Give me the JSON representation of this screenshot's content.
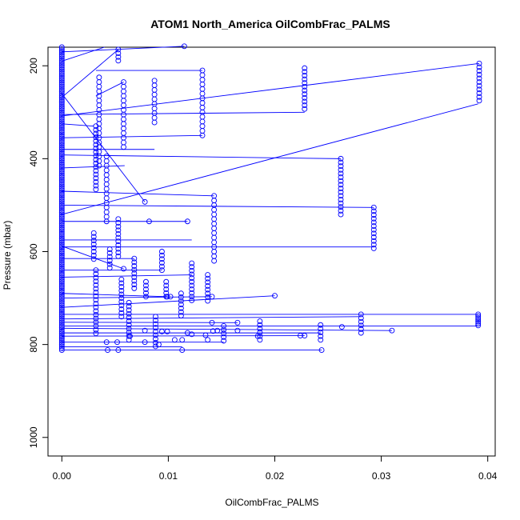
{
  "chart_data": {
    "type": "scatter",
    "title": "ATOM1 North_America OilCombFrac_PALMS",
    "xlabel": "OilCombFrac_PALMS",
    "ylabel": "Pressure (mbar)",
    "xlim": [
      -0.0013,
      0.0407
    ],
    "ylim": [
      1040,
      160
    ],
    "y_reversed": true,
    "grid": false,
    "legend": "none",
    "marker": "open-circle",
    "color": "#0000ff",
    "x_ticks": [
      {
        "value": 0,
        "label": "0.00"
      },
      {
        "value": 0.01,
        "label": "0.01"
      },
      {
        "value": 0.02,
        "label": "0.02"
      },
      {
        "value": 0.03,
        "label": "0.03"
      },
      {
        "value": 0.04,
        "label": "0.04"
      }
    ],
    "y_ticks": [
      {
        "value": 200,
        "label": "200"
      },
      {
        "value": 400,
        "label": "400"
      },
      {
        "value": 600,
        "label": "600"
      },
      {
        "value": 800,
        "label": "800"
      },
      {
        "value": 1000,
        "label": "1000"
      }
    ],
    "column_points": [
      {
        "x": 0.0,
        "p_min": 160,
        "p_max": 812,
        "step": 4
      },
      {
        "x": 0.0032,
        "p_min": 330,
        "p_max": 470,
        "step": 8
      },
      {
        "x": 0.0035,
        "p_min": 225,
        "p_max": 420,
        "step": 10
      },
      {
        "x": 0.0053,
        "p_min": 165,
        "p_max": 190,
        "step": 8
      },
      {
        "x": 0.0058,
        "p_min": 235,
        "p_max": 375,
        "step": 10
      },
      {
        "x": 0.0042,
        "p_min": 395,
        "p_max": 535,
        "step": 10
      },
      {
        "x": 0.0053,
        "p_min": 530,
        "p_max": 610,
        "step": 8
      },
      {
        "x": 0.0087,
        "p_min": 232,
        "p_max": 322,
        "step": 10
      },
      {
        "x": 0.0132,
        "p_min": 210,
        "p_max": 352,
        "step": 10
      },
      {
        "x": 0.0143,
        "p_min": 480,
        "p_max": 620,
        "step": 10
      },
      {
        "x": 0.0228,
        "p_min": 205,
        "p_max": 300,
        "step": 8
      },
      {
        "x": 0.0262,
        "p_min": 400,
        "p_max": 522,
        "step": 8
      },
      {
        "x": 0.0293,
        "p_min": 505,
        "p_max": 593,
        "step": 8
      },
      {
        "x": 0.0392,
        "p_min": 195,
        "p_max": 282,
        "step": 8
      },
      {
        "x": 0.003,
        "p_min": 560,
        "p_max": 620,
        "step": 8
      },
      {
        "x": 0.0045,
        "p_min": 595,
        "p_max": 640,
        "step": 8
      },
      {
        "x": 0.0068,
        "p_min": 615,
        "p_max": 680,
        "step": 8
      },
      {
        "x": 0.0094,
        "p_min": 600,
        "p_max": 640,
        "step": 8
      },
      {
        "x": 0.0122,
        "p_min": 625,
        "p_max": 710,
        "step": 8
      },
      {
        "x": 0.0137,
        "p_min": 650,
        "p_max": 712,
        "step": 8
      },
      {
        "x": 0.0032,
        "p_min": 640,
        "p_max": 780,
        "step": 8
      },
      {
        "x": 0.0056,
        "p_min": 660,
        "p_max": 740,
        "step": 8
      },
      {
        "x": 0.0079,
        "p_min": 665,
        "p_max": 700,
        "step": 8
      },
      {
        "x": 0.0098,
        "p_min": 665,
        "p_max": 700,
        "step": 8
      },
      {
        "x": 0.0112,
        "p_min": 690,
        "p_max": 740,
        "step": 8
      },
      {
        "x": 0.0063,
        "p_min": 710,
        "p_max": 790,
        "step": 8
      },
      {
        "x": 0.0088,
        "p_min": 740,
        "p_max": 805,
        "step": 8
      },
      {
        "x": 0.0152,
        "p_min": 760,
        "p_max": 795,
        "step": 8
      },
      {
        "x": 0.0243,
        "p_min": 758,
        "p_max": 790,
        "step": 8
      },
      {
        "x": 0.0281,
        "p_min": 735,
        "p_max": 775,
        "step": 8
      },
      {
        "x": 0.0391,
        "p_min": 735,
        "p_max": 760,
        "step": 4
      },
      {
        "x": 0.0186,
        "p_min": 750,
        "p_max": 790,
        "step": 8
      }
    ],
    "scatter_points": [
      [
        0.0115,
        158
      ],
      [
        0.0078,
        493
      ],
      [
        0.0082,
        535
      ],
      [
        0.0118,
        535
      ],
      [
        0.0058,
        637
      ],
      [
        0.0099,
        697
      ],
      [
        0.0102,
        697
      ],
      [
        0.0141,
        697
      ],
      [
        0.0165,
        753
      ],
      [
        0.02,
        695
      ],
      [
        0.0141,
        753
      ],
      [
        0.0165,
        770
      ],
      [
        0.031,
        770
      ],
      [
        0.0263,
        762
      ],
      [
        0.0228,
        781
      ],
      [
        0.0224,
        781
      ],
      [
        0.0142,
        771
      ],
      [
        0.0135,
        780
      ],
      [
        0.0137,
        790
      ],
      [
        0.0118,
        775
      ],
      [
        0.0094,
        772
      ],
      [
        0.0099,
        772
      ],
      [
        0.0078,
        770
      ],
      [
        0.0106,
        790
      ],
      [
        0.0113,
        790
      ],
      [
        0.0146,
        770
      ],
      [
        0.0042,
        795
      ],
      [
        0.0052,
        795
      ],
      [
        0.0078,
        795
      ],
      [
        0.0091,
        800
      ],
      [
        0.0043,
        812
      ],
      [
        0.0053,
        812
      ],
      [
        0.0113,
        812
      ],
      [
        0.0244,
        812
      ],
      [
        0.0184,
        782
      ],
      [
        0.0122,
        778
      ],
      [
        0.0064,
        782
      ]
    ],
    "line_segments": [
      [
        0.0,
        170,
        0.0115,
        158
      ],
      [
        0.0,
        190,
        0.004,
        160
      ],
      [
        0.0,
        268,
        0.0053,
        165
      ],
      [
        0.0032,
        210,
        0.0132,
        210
      ],
      [
        0.0032,
        265,
        0.0058,
        235
      ],
      [
        0.0,
        305,
        0.0228,
        300
      ],
      [
        0.0,
        308,
        0.0392,
        195
      ],
      [
        0.0,
        325,
        0.003,
        330
      ],
      [
        0.0,
        355,
        0.0132,
        350
      ],
      [
        0.0,
        380,
        0.0087,
        380
      ],
      [
        0.0,
        392,
        0.0262,
        400
      ],
      [
        0.0,
        520,
        0.0391,
        282
      ],
      [
        0.0,
        470,
        0.0143,
        480
      ],
      [
        0.0,
        500,
        0.0293,
        505
      ],
      [
        0.0,
        590,
        0.0293,
        590
      ],
      [
        0.0,
        260,
        0.0078,
        493
      ],
      [
        0.0,
        420,
        0.0059,
        415
      ],
      [
        0.0,
        535,
        0.0118,
        535
      ],
      [
        0.0,
        575,
        0.0122,
        575
      ],
      [
        0.0,
        588,
        0.0058,
        637
      ],
      [
        0.0,
        615,
        0.0068,
        615
      ],
      [
        0.0,
        640,
        0.0094,
        640
      ],
      [
        0.0,
        655,
        0.0122,
        650
      ],
      [
        0.0,
        690,
        0.0099,
        697
      ],
      [
        0.0,
        700,
        0.0141,
        697
      ],
      [
        0.0,
        720,
        0.02,
        695
      ],
      [
        0.0,
        735,
        0.0391,
        735
      ],
      [
        0.0,
        745,
        0.0281,
        740
      ],
      [
        0.0,
        752,
        0.0165,
        753
      ],
      [
        0.0,
        760,
        0.0391,
        760
      ],
      [
        0.0,
        765,
        0.031,
        770
      ],
      [
        0.0,
        775,
        0.0243,
        775
      ],
      [
        0.0,
        782,
        0.0228,
        781
      ],
      [
        0.0,
        795,
        0.0152,
        795
      ],
      [
        0.0,
        805,
        0.0113,
        805
      ],
      [
        0.0,
        812,
        0.0244,
        812
      ]
    ]
  }
}
